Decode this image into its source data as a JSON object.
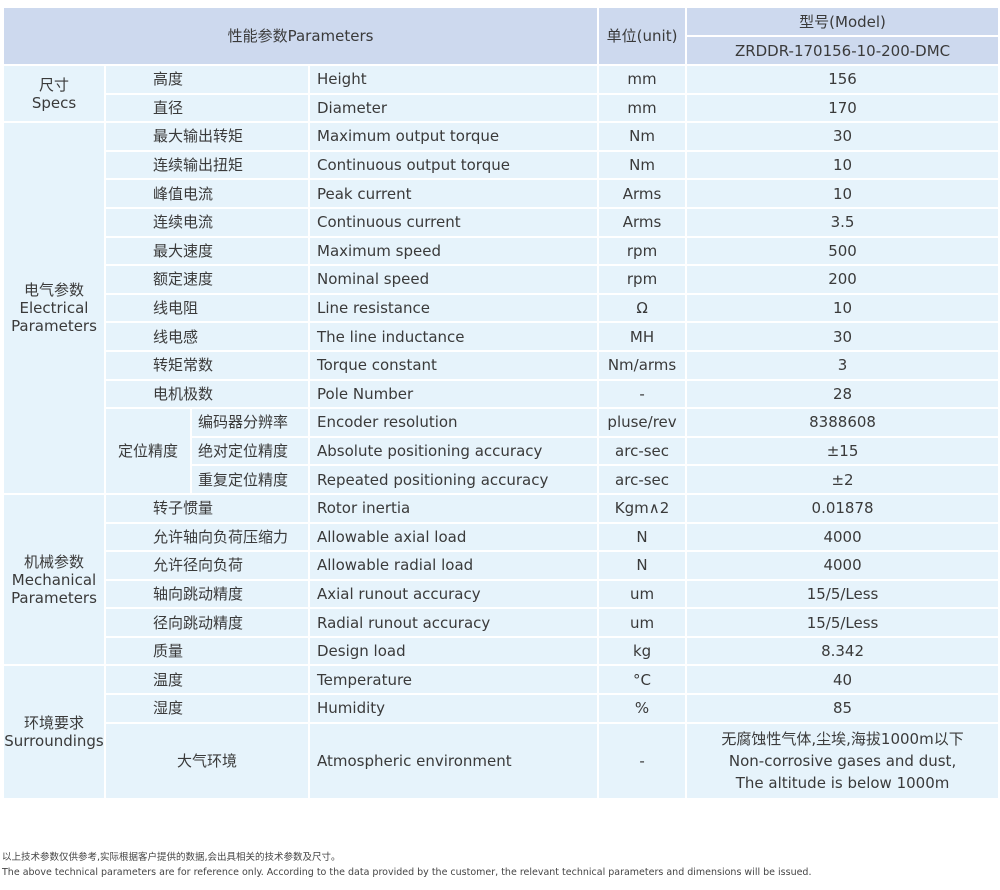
{
  "header": {
    "parameters": "性能参数Parameters",
    "unit": "单位(unit)",
    "model_label": "型号(Model)",
    "model": "ZRDDR-170156-10-200-DMC"
  },
  "groups": [
    {
      "cn": "尺寸",
      "en": "Specs",
      "rows": [
        {
          "cn": "高度",
          "en": "Height",
          "unit": "mm",
          "value": "156"
        },
        {
          "cn": "直径",
          "en": "Diameter",
          "unit": "mm",
          "value": "170"
        }
      ]
    },
    {
      "cn": "电气参数",
      "en": "Electrical Parameters",
      "rows": [
        {
          "cn": "最大输出转矩",
          "en": "Maximum output torque",
          "unit": "Nm",
          "value": "30"
        },
        {
          "cn": "连续输出扭矩",
          "en": "Continuous output torque",
          "unit": "Nm",
          "value": "10"
        },
        {
          "cn": "峰值电流",
          "en": "Peak current",
          "unit": "Arms",
          "value": "10"
        },
        {
          "cn": "连续电流",
          "en": "Continuous current",
          "unit": "Arms",
          "value": "3.5"
        },
        {
          "cn": "最大速度",
          "en": "Maximum speed",
          "unit": "rpm",
          "value": "500"
        },
        {
          "cn": "额定速度",
          "en": "Nominal speed",
          "unit": "rpm",
          "value": "200"
        },
        {
          "cn": "线电阻",
          "en": "Line resistance",
          "unit": "Ω",
          "value": "10"
        },
        {
          "cn": "线电感",
          "en": "The line inductance",
          "unit": "MH",
          "value": "30"
        },
        {
          "cn": "转矩常数",
          "en": "Torque constant",
          "unit": "Nm/arms",
          "value": "3"
        },
        {
          "cn": "电机极数",
          "en": "Pole Number",
          "unit": "-",
          "value": "28"
        }
      ],
      "subgroup": {
        "cn": "定位精度",
        "rows": [
          {
            "cn": "编码器分辨率",
            "en": "Encoder resolution",
            "unit": "pluse/rev",
            "value": "8388608"
          },
          {
            "cn": "绝对定位精度",
            "en": "Absolute positioning accuracy",
            "unit": "arc-sec",
            "value": "±15"
          },
          {
            "cn": "重复定位精度",
            "en": "Repeated positioning accuracy",
            "unit": "arc-sec",
            "value": "±2"
          }
        ]
      }
    },
    {
      "cn": "机械参数",
      "en": "Mechanical Parameters",
      "rows": [
        {
          "cn": "转子惯量",
          "en": "Rotor inertia",
          "unit": "Kgm∧2",
          "value": "0.01878"
        },
        {
          "cn": "允许轴向负荷压缩力",
          "en": "Allowable axial load",
          "unit": "N",
          "value": "4000"
        },
        {
          "cn": "允许径向负荷",
          "en": "Allowable radial load",
          "unit": "N",
          "value": "4000"
        },
        {
          "cn": "轴向跳动精度",
          "en": "Axial runout accuracy",
          "unit": "um",
          "value": "15/5/Less"
        },
        {
          "cn": "径向跳动精度",
          "en": "Radial runout accuracy",
          "unit": "um",
          "value": "15/5/Less"
        },
        {
          "cn": "质量",
          "en": "Design load",
          "unit": "kg",
          "value": "8.342"
        }
      ]
    },
    {
      "cn": "环境要求",
      "en": "Surroundings",
      "rows": [
        {
          "cn": "温度",
          "en": "Temperature",
          "unit": "°C",
          "value": "40"
        },
        {
          "cn": "湿度",
          "en": "Humidity",
          "unit": "%",
          "value": "85"
        },
        {
          "cn": "大气环境",
          "en": "Atmospheric environment",
          "unit": "-",
          "value": "无腐蚀性气体,尘埃,海拔1000m以下\nNon-corrosive gases and dust,\nThe altitude is below 1000m",
          "tall": true
        }
      ]
    }
  ],
  "notes": {
    "cn": "以上技术参数仅供参考,实际根据客户提供的数据,会出具相关的技术参数及尺寸。",
    "en": "The above technical parameters are for reference only. According to the data provided by the customer, the relevant technical parameters and dimensions will be issued."
  }
}
